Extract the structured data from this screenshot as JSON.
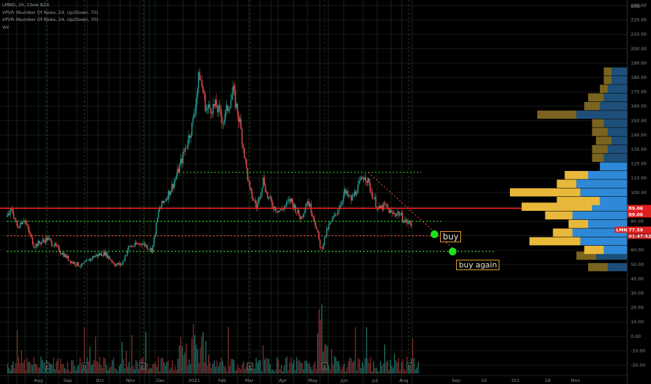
{
  "chart_title": "LMND, 2h, Cboe BZX",
  "indicators": [
    "VPVR (Number Of Rows, 24, Up/Down, 70)",
    "VPVR (Number Of Rows, 24, Up/Down, 70)",
    "Vol"
  ],
  "currency": "USD",
  "price_markers": {
    "level_a": "89.06",
    "level_b": "89.06",
    "last_ticker": "LMND",
    "last_price": "77.59",
    "countdown": "01:47:52"
  },
  "annotations": {
    "buy": "buy",
    "buy_again": "buy again"
  },
  "colors": {
    "background": "#000000",
    "grid": "#1a1a1a",
    "up": "#26a69a",
    "down": "#ef5350",
    "support": "#2bd92b",
    "resistance": "#ff1f1f",
    "vp_up": "#2e8ad8",
    "vp_down": "#e8b83a",
    "annotation_border": "#e8a030"
  },
  "chart_data": {
    "type": "candlestick",
    "title": "LMND, 2h, Cboe BZX",
    "x_tick_labels": [
      "Aug",
      "Sep",
      "Oct",
      "Nov",
      "Dec",
      "2021",
      "Feb",
      "Mar",
      "Apr",
      "May",
      "Jun",
      "Jul",
      "Aug",
      "Sep",
      "16",
      "Oct",
      "18",
      "Nov"
    ],
    "y_tick_labels": [
      "230.00",
      "220.00",
      "210.00",
      "200.00",
      "190.00",
      "180.00",
      "170.00",
      "160.00",
      "150.00",
      "140.00",
      "130.00",
      "120.00",
      "110.00",
      "100.00",
      "90.00",
      "80.00",
      "70.00",
      "60.00",
      "50.00",
      "40.00",
      "30.00",
      "20.00",
      "10.00",
      "0.00",
      "-10.00",
      "-20.00"
    ],
    "ylim": [
      -25,
      243
    ],
    "price_path": [
      {
        "t": 0,
        "p": 83
      },
      {
        "t": 1.5,
        "p": 88
      },
      {
        "t": 3,
        "p": 76
      },
      {
        "t": 5,
        "p": 82
      },
      {
        "t": 8,
        "p": 63
      },
      {
        "t": 12,
        "p": 68
      },
      {
        "t": 15,
        "p": 61
      },
      {
        "t": 19,
        "p": 52
      },
      {
        "t": 22,
        "p": 49
      },
      {
        "t": 26,
        "p": 56
      },
      {
        "t": 29,
        "p": 58
      },
      {
        "t": 32,
        "p": 50
      },
      {
        "t": 34,
        "p": 50
      },
      {
        "t": 36,
        "p": 62
      },
      {
        "t": 40,
        "p": 65
      },
      {
        "t": 43,
        "p": 60
      },
      {
        "t": 45,
        "p": 88
      },
      {
        "t": 48,
        "p": 100
      },
      {
        "t": 50,
        "p": 110
      },
      {
        "t": 53,
        "p": 132
      },
      {
        "t": 55,
        "p": 148
      },
      {
        "t": 57,
        "p": 183
      },
      {
        "t": 59,
        "p": 158
      },
      {
        "t": 62,
        "p": 160
      },
      {
        "t": 64,
        "p": 150
      },
      {
        "t": 67,
        "p": 170
      },
      {
        "t": 69,
        "p": 148
      },
      {
        "t": 71,
        "p": 115
      },
      {
        "t": 72,
        "p": 100
      },
      {
        "t": 74,
        "p": 90
      },
      {
        "t": 76,
        "p": 110
      },
      {
        "t": 77,
        "p": 98
      },
      {
        "t": 79,
        "p": 90
      },
      {
        "t": 81,
        "p": 87
      },
      {
        "t": 84,
        "p": 95
      },
      {
        "t": 87,
        "p": 82
      },
      {
        "t": 89,
        "p": 95
      },
      {
        "t": 91,
        "p": 82
      },
      {
        "t": 93,
        "p": 60
      },
      {
        "t": 95,
        "p": 75
      },
      {
        "t": 98,
        "p": 88
      },
      {
        "t": 100,
        "p": 100
      },
      {
        "t": 102,
        "p": 95
      },
      {
        "t": 104,
        "p": 104
      },
      {
        "t": 106,
        "p": 113
      },
      {
        "t": 108,
        "p": 100
      },
      {
        "t": 110,
        "p": 88
      },
      {
        "t": 112,
        "p": 91
      },
      {
        "t": 114,
        "p": 85
      },
      {
        "t": 116,
        "p": 86
      },
      {
        "t": 118,
        "p": 80
      },
      {
        "t": 120,
        "p": 77.59
      }
    ],
    "earnings_markers": [
      "E",
      "D",
      "E",
      "E",
      "E",
      "D"
    ],
    "horizontal_levels": [
      {
        "name": "resistance",
        "price": 89.06,
        "style": "solid",
        "color": "#ff1f1f"
      },
      {
        "name": "upper-range",
        "price": 114,
        "style": "dotted",
        "color": "#2bd92b"
      },
      {
        "name": "mid-support",
        "price": 80,
        "style": "dotted",
        "color": "#2bd92b"
      },
      {
        "name": "buy-level",
        "price": 70,
        "style": "dotted",
        "color": "#ff4040"
      },
      {
        "name": "lower-support",
        "price": 59,
        "style": "dotted",
        "color": "#2bd92b"
      }
    ],
    "trendline": {
      "from": {
        "t": 107,
        "p": 114
      },
      "to": {
        "t": 134,
        "p": 60
      },
      "style": "dotted",
      "color": "#ff4040"
    },
    "buy_points": [
      {
        "label": "buy",
        "t": 127,
        "p": 71
      },
      {
        "label": "buy again",
        "t": 134,
        "p": 59
      }
    ],
    "volume_profile": {
      "rows_price_low": [
        45,
        53,
        57,
        63,
        69,
        75,
        81,
        87,
        91,
        97,
        103,
        109,
        115,
        121,
        127,
        133,
        139,
        145,
        151,
        157,
        163,
        169,
        175,
        181
      ],
      "up_volume": [
        5,
        8,
        6,
        12,
        14,
        10,
        14,
        9,
        7,
        12,
        13,
        10,
        7,
        6,
        5,
        4,
        5,
        6,
        13,
        7,
        6,
        5,
        4,
        4
      ],
      "down_volume": [
        5,
        5,
        5,
        13,
        5,
        5,
        7,
        18,
        11,
        18,
        5,
        6,
        0,
        3,
        4,
        4,
        4,
        3,
        10,
        4,
        4,
        2,
        2,
        2
      ]
    },
    "volume_axis": "Vol"
  }
}
